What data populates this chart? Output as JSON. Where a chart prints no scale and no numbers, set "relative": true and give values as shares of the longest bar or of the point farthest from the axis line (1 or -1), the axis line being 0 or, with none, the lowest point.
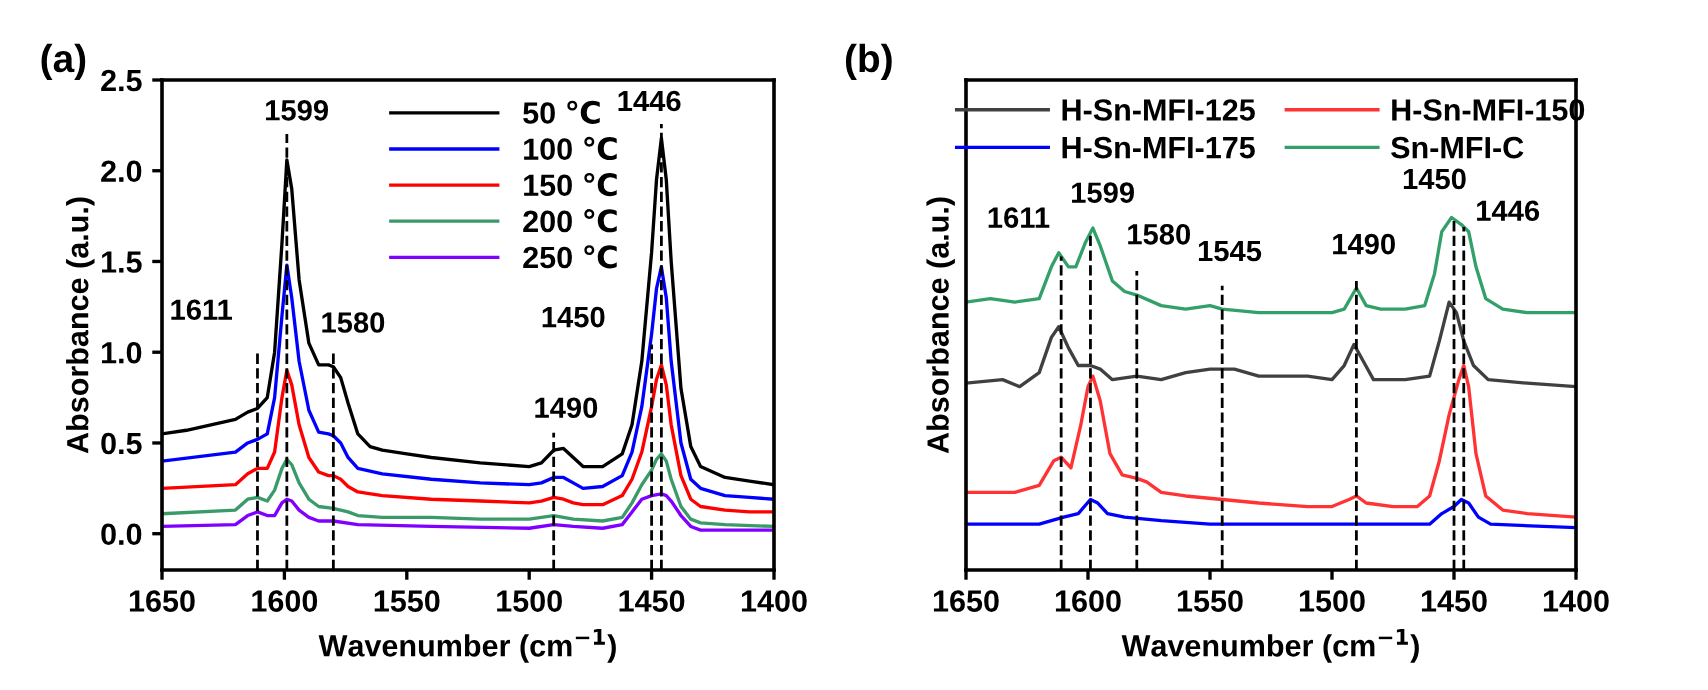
{
  "chart_data": [
    {
      "type": "line",
      "title": "(a)",
      "xlabel": "Wavenumber (cm$^{−1}$)",
      "ylabel": "Absorbance (a.u.)",
      "xlim": [
        1650,
        1400
      ],
      "xticks": [
        1650,
        1600,
        1550,
        1500,
        1450,
        1400
      ],
      "ylim": [
        -0.2,
        2.5
      ],
      "yticks": [
        {
          "value": 0,
          "label": "0.0"
        },
        0.5,
        {
          "value": 1,
          "label": "1.0"
        },
        1.5,
        {
          "value": 2,
          "label": "2.0"
        },
        2.5
      ],
      "legend": "top",
      "grid": false,
      "series": [
        {
          "name": "50 ℃",
          "color": "#000000",
          "x": [
            1650,
            1640,
            1630,
            1620,
            1615,
            1611,
            1607,
            1604,
            1601,
            1599,
            1597,
            1594,
            1590,
            1586,
            1582,
            1580,
            1577,
            1574,
            1570,
            1565,
            1560,
            1550,
            1540,
            1520,
            1500,
            1495,
            1490,
            1486,
            1482,
            1478,
            1470,
            1462,
            1458,
            1454,
            1450,
            1448,
            1446,
            1444,
            1442,
            1438,
            1434,
            1430,
            1420,
            1410,
            1400
          ],
          "values": [
            0.55,
            0.57,
            0.6,
            0.63,
            0.67,
            0.69,
            0.75,
            1.0,
            1.6,
            2.06,
            1.9,
            1.4,
            1.05,
            0.93,
            0.93,
            0.92,
            0.86,
            0.72,
            0.55,
            0.48,
            0.46,
            0.44,
            0.42,
            0.39,
            0.37,
            0.39,
            0.46,
            0.47,
            0.42,
            0.37,
            0.37,
            0.44,
            0.6,
            0.95,
            1.55,
            1.95,
            2.18,
            1.95,
            1.5,
            0.8,
            0.48,
            0.37,
            0.31,
            0.29,
            0.27
          ]
        },
        {
          "name": "100 ℃",
          "color": "#0000ff",
          "x": [
            1650,
            1620,
            1615,
            1611,
            1607,
            1604,
            1601,
            1599,
            1597,
            1594,
            1590,
            1586,
            1582,
            1580,
            1577,
            1574,
            1570,
            1560,
            1540,
            1520,
            1500,
            1495,
            1490,
            1486,
            1482,
            1478,
            1470,
            1462,
            1458,
            1454,
            1450,
            1448,
            1446,
            1444,
            1442,
            1438,
            1434,
            1430,
            1420,
            1410,
            1400
          ],
          "values": [
            0.4,
            0.45,
            0.5,
            0.52,
            0.55,
            0.75,
            1.2,
            1.48,
            1.3,
            0.95,
            0.68,
            0.56,
            0.55,
            0.54,
            0.5,
            0.42,
            0.36,
            0.33,
            0.3,
            0.28,
            0.27,
            0.28,
            0.31,
            0.31,
            0.28,
            0.25,
            0.26,
            0.32,
            0.45,
            0.7,
            1.1,
            1.35,
            1.47,
            1.3,
            0.95,
            0.5,
            0.3,
            0.25,
            0.21,
            0.2,
            0.19
          ]
        },
        {
          "name": "150 ℃",
          "color": "#ff0000",
          "x": [
            1650,
            1620,
            1615,
            1611,
            1607,
            1604,
            1601,
            1599,
            1597,
            1594,
            1590,
            1586,
            1582,
            1580,
            1577,
            1574,
            1570,
            1560,
            1540,
            1520,
            1500,
            1495,
            1490,
            1486,
            1482,
            1478,
            1470,
            1462,
            1458,
            1454,
            1450,
            1448,
            1446,
            1444,
            1442,
            1438,
            1434,
            1430,
            1420,
            1410,
            1400
          ],
          "values": [
            0.25,
            0.27,
            0.33,
            0.36,
            0.36,
            0.45,
            0.75,
            0.9,
            0.82,
            0.6,
            0.42,
            0.34,
            0.32,
            0.32,
            0.3,
            0.26,
            0.23,
            0.21,
            0.19,
            0.18,
            0.17,
            0.18,
            0.2,
            0.19,
            0.17,
            0.16,
            0.16,
            0.21,
            0.3,
            0.45,
            0.7,
            0.85,
            0.93,
            0.82,
            0.6,
            0.32,
            0.19,
            0.15,
            0.13,
            0.12,
            0.12
          ]
        },
        {
          "name": "200 ℃",
          "color": "#3a9a6a",
          "x": [
            1650,
            1620,
            1615,
            1611,
            1607,
            1604,
            1601,
            1599,
            1597,
            1594,
            1590,
            1586,
            1580,
            1574,
            1570,
            1560,
            1540,
            1520,
            1500,
            1490,
            1482,
            1470,
            1462,
            1458,
            1454,
            1450,
            1448,
            1446,
            1444,
            1442,
            1438,
            1434,
            1430,
            1420,
            1400
          ],
          "values": [
            0.11,
            0.13,
            0.19,
            0.2,
            0.18,
            0.24,
            0.36,
            0.41,
            0.38,
            0.28,
            0.19,
            0.15,
            0.14,
            0.12,
            0.1,
            0.09,
            0.09,
            0.08,
            0.08,
            0.1,
            0.08,
            0.07,
            0.09,
            0.17,
            0.27,
            0.35,
            0.41,
            0.44,
            0.4,
            0.3,
            0.15,
            0.08,
            0.06,
            0.05,
            0.04
          ]
        },
        {
          "name": "250 ℃",
          "color": "#8000ff",
          "x": [
            1650,
            1620,
            1615,
            1611,
            1607,
            1604,
            1601,
            1599,
            1597,
            1594,
            1590,
            1586,
            1580,
            1570,
            1540,
            1500,
            1490,
            1482,
            1470,
            1462,
            1458,
            1454,
            1450,
            1446,
            1444,
            1442,
            1438,
            1434,
            1430,
            1420,
            1400
          ],
          "values": [
            0.04,
            0.05,
            0.1,
            0.12,
            0.1,
            0.1,
            0.17,
            0.19,
            0.18,
            0.13,
            0.09,
            0.07,
            0.07,
            0.05,
            0.04,
            0.03,
            0.05,
            0.04,
            0.03,
            0.05,
            0.12,
            0.19,
            0.21,
            0.22,
            0.21,
            0.18,
            0.1,
            0.04,
            0.02,
            0.02,
            0.02
          ]
        }
      ],
      "ref_lines": [
        {
          "axis": "x",
          "value": 1611,
          "label": "1611",
          "line_style": "dashed",
          "color": "#000000"
        },
        {
          "axis": "x",
          "value": 1599,
          "label": "1599",
          "line_style": "dashed",
          "color": "#000000"
        },
        {
          "axis": "x",
          "value": 1580,
          "label": "1580",
          "line_style": "dashed",
          "color": "#000000"
        },
        {
          "axis": "x",
          "value": 1490,
          "label": "1490",
          "line_style": "dashed",
          "color": "#000000"
        },
        {
          "axis": "x",
          "value": 1450,
          "label": "1450",
          "line_style": "dashed",
          "color": "#000000"
        },
        {
          "axis": "x",
          "value": 1446,
          "label": "1446",
          "line_style": "dashed",
          "color": "#000000"
        }
      ]
    },
    {
      "type": "line",
      "title": "(b)",
      "xlabel": "Wavenumber (cm$^{−1}$)",
      "ylabel": "Absorbance (a.u.)",
      "relative": true,
      "xlim": [
        1650,
        1400
      ],
      "xticks": [
        1650,
        1600,
        1550,
        1500,
        1450,
        1400
      ],
      "legend": "top",
      "grid": false,
      "series": [
        {
          "name": "H-Sn-MFI-125",
          "color": "#404040",
          "x": [
            1650,
            1635,
            1628,
            1620,
            1615,
            1612,
            1608,
            1604,
            1599,
            1595,
            1590,
            1580,
            1570,
            1560,
            1550,
            1540,
            1530,
            1510,
            1500,
            1495,
            1491,
            1487,
            1483,
            1470,
            1460,
            1456,
            1452,
            1449,
            1446,
            1442,
            1436,
            1420,
            1400
          ],
          "values": [
            0.53,
            0.54,
            0.52,
            0.56,
            0.66,
            0.69,
            0.63,
            0.58,
            0.58,
            0.57,
            0.54,
            0.55,
            0.54,
            0.56,
            0.57,
            0.57,
            0.55,
            0.55,
            0.54,
            0.58,
            0.64,
            0.59,
            0.54,
            0.54,
            0.55,
            0.65,
            0.76,
            0.73,
            0.65,
            0.58,
            0.54,
            0.53,
            0.52
          ]
        },
        {
          "name": "H-Sn-MFI-150",
          "color": "#ff3333",
          "x": [
            1650,
            1630,
            1620,
            1614,
            1611,
            1607,
            1603,
            1600,
            1598,
            1595,
            1591,
            1586,
            1580,
            1576,
            1570,
            1560,
            1545,
            1530,
            1510,
            1500,
            1493,
            1490,
            1486,
            1475,
            1465,
            1460,
            1456,
            1452,
            1448,
            1446,
            1444,
            1441,
            1437,
            1430,
            1420,
            1400
          ],
          "values": [
            0.22,
            0.22,
            0.24,
            0.31,
            0.32,
            0.29,
            0.41,
            0.52,
            0.55,
            0.48,
            0.33,
            0.27,
            0.26,
            0.25,
            0.22,
            0.21,
            0.2,
            0.19,
            0.18,
            0.18,
            0.2,
            0.21,
            0.19,
            0.18,
            0.18,
            0.21,
            0.31,
            0.44,
            0.54,
            0.58,
            0.52,
            0.33,
            0.21,
            0.17,
            0.16,
            0.15
          ]
        },
        {
          "name": "H-Sn-MFI-175",
          "color": "#0000ff",
          "x": [
            1650,
            1620,
            1610,
            1604,
            1599,
            1596,
            1592,
            1585,
            1570,
            1550,
            1520,
            1500,
            1490,
            1470,
            1460,
            1455,
            1450,
            1447,
            1444,
            1440,
            1435,
            1400
          ],
          "values": [
            0.13,
            0.13,
            0.15,
            0.16,
            0.2,
            0.19,
            0.16,
            0.15,
            0.14,
            0.13,
            0.13,
            0.13,
            0.13,
            0.13,
            0.13,
            0.16,
            0.18,
            0.2,
            0.19,
            0.15,
            0.13,
            0.12
          ]
        },
        {
          "name": "Sn-MFI-C",
          "color": "#33a06a",
          "x": [
            1650,
            1640,
            1630,
            1620,
            1615,
            1612,
            1608,
            1605,
            1601,
            1598,
            1595,
            1590,
            1585,
            1580,
            1570,
            1560,
            1550,
            1545,
            1530,
            1510,
            1500,
            1495,
            1490,
            1486,
            1480,
            1470,
            1462,
            1458,
            1455,
            1451,
            1447,
            1444,
            1441,
            1437,
            1430,
            1420,
            1400
          ],
          "values": [
            0.76,
            0.77,
            0.76,
            0.77,
            0.86,
            0.9,
            0.86,
            0.86,
            0.93,
            0.97,
            0.92,
            0.82,
            0.79,
            0.78,
            0.75,
            0.74,
            0.75,
            0.74,
            0.73,
            0.73,
            0.73,
            0.74,
            0.8,
            0.75,
            0.74,
            0.74,
            0.75,
            0.84,
            0.96,
            1.0,
            0.98,
            0.96,
            0.86,
            0.77,
            0.74,
            0.73,
            0.73
          ]
        }
      ],
      "ref_lines": [
        {
          "axis": "x",
          "value": 1611,
          "label": "1611",
          "line_style": "dashed",
          "color": "#000000"
        },
        {
          "axis": "x",
          "value": 1599,
          "label": "1599",
          "line_style": "dashed",
          "color": "#000000"
        },
        {
          "axis": "x",
          "value": 1580,
          "label": "1580",
          "line_style": "dashed",
          "color": "#000000"
        },
        {
          "axis": "x",
          "value": 1545,
          "label": "1545",
          "line_style": "dashed",
          "color": "#000000"
        },
        {
          "axis": "x",
          "value": 1490,
          "label": "1490",
          "line_style": "dashed",
          "color": "#000000"
        },
        {
          "axis": "x",
          "value": 1450,
          "label": "1450",
          "line_style": "dashed",
          "color": "#000000"
        },
        {
          "axis": "x",
          "value": 1446,
          "label": "1446",
          "line_style": "dashed",
          "color": "#000000"
        }
      ]
    }
  ]
}
